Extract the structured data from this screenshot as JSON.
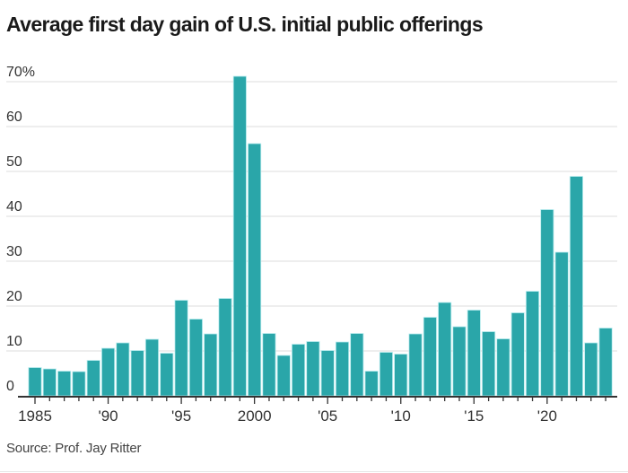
{
  "chart_data": {
    "type": "bar",
    "title": "Average first day gain of U.S. initial public offerings",
    "xlabel": "",
    "ylabel": "",
    "source": "Source: Prof. Jay Ritter",
    "ylim": [
      0,
      70
    ],
    "yticks": [
      0,
      10,
      20,
      30,
      40,
      50,
      60,
      70
    ],
    "ytick_labels": [
      "0",
      "10",
      "20",
      "30",
      "40",
      "50",
      "60",
      "70%"
    ],
    "xticks_labeled": [
      1985,
      1990,
      1995,
      2000,
      2005,
      2010,
      2015,
      2020
    ],
    "xtick_labels": [
      "1985",
      "'90",
      "'95",
      "2000",
      "'05",
      "'10",
      "'15",
      "'20"
    ],
    "grid": true,
    "bar_color": "#2aa6a9",
    "categories": [
      1985,
      1986,
      1987,
      1988,
      1989,
      1990,
      1991,
      1992,
      1993,
      1994,
      1995,
      1996,
      1997,
      1998,
      1999,
      2000,
      2001,
      2002,
      2003,
      2004,
      2005,
      2006,
      2007,
      2008,
      2009,
      2010,
      2011,
      2012,
      2013,
      2014,
      2015,
      2016,
      2017,
      2018,
      2019,
      2020,
      2021,
      2022,
      2023,
      2024
    ],
    "values": [
      6.3,
      6.0,
      5.5,
      5.4,
      7.9,
      10.6,
      11.8,
      10.1,
      12.6,
      9.5,
      21.3,
      17.1,
      13.8,
      21.7,
      71.2,
      56.2,
      13.9,
      9.0,
      11.5,
      12.1,
      10.1,
      12.0,
      13.9,
      5.5,
      9.7,
      9.3,
      13.8,
      17.5,
      20.8,
      15.4,
      19.1,
      14.3,
      12.7,
      18.5,
      23.3,
      41.5,
      32.0,
      48.9,
      11.8,
      15.1
    ]
  }
}
